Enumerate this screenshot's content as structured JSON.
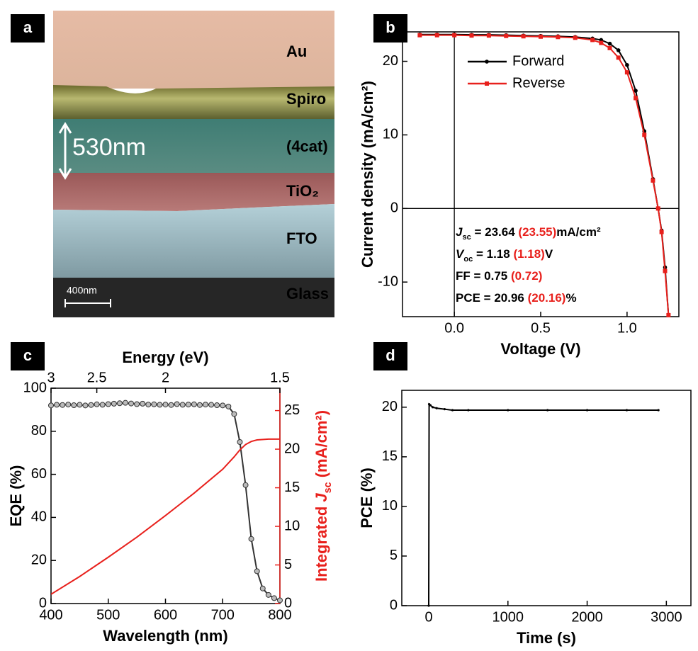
{
  "panels": [
    "a",
    "b",
    "c",
    "d"
  ],
  "sem": {
    "layers": [
      "Au",
      "Spiro",
      "(4cat)",
      "TiO₂",
      "FTO",
      "Glass"
    ],
    "thickness": "530nm",
    "scale_bar": "400nm"
  },
  "chart_data": [
    {
      "type": "line",
      "xlabel": "Voltage (V)",
      "ylabel": "Current density (mA/cm²)",
      "xlim": [
        -0.3,
        1.3
      ],
      "ylim": [
        -14.7,
        24
      ],
      "xticks": [
        {
          "value": 0,
          "label": "0.0"
        },
        0.5,
        {
          "value": 1,
          "label": "1.0"
        }
      ],
      "yticks": [
        -10,
        0,
        10,
        20
      ],
      "zero_lines": true,
      "legend": "upper left",
      "x": [
        -0.2,
        -0.1,
        0,
        0.1,
        0.2,
        0.3,
        0.4,
        0.5,
        0.6,
        0.7,
        0.8,
        0.85,
        0.9,
        0.95,
        1.0,
        1.05,
        1.1,
        1.15,
        1.18,
        1.2,
        1.22,
        1.24
      ],
      "series": [
        {
          "name": "Forward",
          "color": "#000000",
          "marker": "circle",
          "values": [
            23.64,
            23.64,
            23.64,
            23.6,
            23.6,
            23.55,
            23.5,
            23.45,
            23.4,
            23.3,
            23.1,
            22.9,
            22.4,
            21.5,
            19.5,
            16,
            10.5,
            4,
            0,
            -3,
            -8,
            -14.5
          ]
        },
        {
          "name": "Reverse",
          "color": "#e8201c",
          "marker": "square",
          "values": [
            23.55,
            23.55,
            23.55,
            23.5,
            23.5,
            23.45,
            23.4,
            23.35,
            23.3,
            23.2,
            22.9,
            22.5,
            21.8,
            20.5,
            18.5,
            15,
            10,
            3.8,
            0,
            -3.2,
            -8.5,
            -14.5
          ]
        }
      ],
      "annotations": [
        [
          {
            "text": "J",
            "italic": true
          },
          {
            "text": "sc",
            "sub": true
          },
          {
            "text": " = 23.64 "
          },
          {
            "text": "(23.55)",
            "color": "#e8201c"
          },
          {
            "text": "mA/cm²"
          }
        ],
        [
          {
            "text": "V",
            "italic": true
          },
          {
            "text": "oc",
            "sub": true
          },
          {
            "text": " = 1.18 "
          },
          {
            "text": "(1.18)",
            "color": "#e8201c"
          },
          {
            "text": "V"
          }
        ],
        [
          {
            "text": "FF = 0.75 "
          },
          {
            "text": "(0.72)",
            "color": "#e8201c"
          }
        ],
        [
          {
            "text": "PCE = 20.96 "
          },
          {
            "text": "(20.16)",
            "color": "#e8201c"
          },
          {
            "text": "%"
          }
        ]
      ]
    },
    {
      "type": "line",
      "xlabel": "Wavelength (nm)",
      "ylabel": "EQE (%)",
      "x2label": "Energy (eV)",
      "y2label": [
        {
          "text": "Integrated "
        },
        {
          "text": "J",
          "italic": true
        },
        {
          "text": "sc",
          "sub": true
        },
        {
          "text": " (mA/cm²)"
        }
      ],
      "y2color": "#e8201c",
      "xlim": [
        400,
        800
      ],
      "ylim": [
        0,
        100
      ],
      "y2lim": [
        0,
        27.9
      ],
      "xticks": [
        400,
        500,
        600,
        700,
        800
      ],
      "yticks": [
        0,
        20,
        40,
        60,
        80,
        100
      ],
      "y2ticks": [
        0,
        5,
        10,
        15,
        20,
        25
      ],
      "x2lim": [
        3,
        1.5
      ],
      "x2scale": "reciprocal",
      "x2ticks": [
        3,
        2.5,
        2,
        1.5
      ],
      "series": [
        {
          "name": "EQE",
          "color": "#333333",
          "marker": "open-circle",
          "x": [
            400,
            410,
            420,
            430,
            440,
            450,
            460,
            470,
            480,
            490,
            500,
            510,
            520,
            530,
            540,
            550,
            560,
            570,
            580,
            590,
            600,
            610,
            620,
            630,
            640,
            650,
            660,
            670,
            680,
            690,
            700,
            710,
            720,
            730,
            740,
            750,
            760,
            770,
            780,
            790,
            800
          ],
          "values": [
            92,
            92.3,
            92.2,
            92.4,
            92.1,
            92.3,
            92,
            92.2,
            92.5,
            92.3,
            92.6,
            92.8,
            93,
            93.2,
            92.9,
            92.6,
            92.8,
            92.4,
            92.5,
            92.3,
            92.4,
            92.2,
            92.6,
            92.3,
            92.4,
            92.5,
            92.2,
            92.4,
            92.3,
            92.1,
            92,
            91.5,
            88,
            75,
            55,
            30,
            15,
            7,
            4,
            2.5,
            1.5
          ]
        },
        {
          "name": "Integrated Jsc",
          "color": "#e8201c",
          "axis": "y2",
          "x": [
            400,
            450,
            500,
            550,
            600,
            650,
            700,
            720,
            730,
            740,
            750,
            760,
            780,
            800
          ],
          "values": [
            1.2,
            3.5,
            6,
            8.6,
            11.4,
            14.3,
            17.4,
            19,
            19.9,
            20.6,
            21,
            21.2,
            21.3,
            21.3
          ]
        }
      ]
    },
    {
      "type": "line",
      "xlabel": "Time (s)",
      "ylabel": "PCE (%)",
      "xlim": [
        -340,
        3310
      ],
      "ylim": [
        0,
        21.7
      ],
      "xticks": [
        0,
        1000,
        2000,
        3000
      ],
      "yticks": [
        0,
        5,
        10,
        15,
        20
      ],
      "series": [
        {
          "name": "PCE",
          "color": "#000000",
          "marker": "dot",
          "x": [
            0,
            5,
            20,
            50,
            100,
            200,
            300,
            500,
            1000,
            1500,
            2000,
            2500,
            2900
          ],
          "values": [
            0,
            20.3,
            20.2,
            20,
            19.9,
            19.8,
            19.7,
            19.7,
            19.7,
            19.7,
            19.7,
            19.7,
            19.7
          ]
        }
      ]
    }
  ]
}
